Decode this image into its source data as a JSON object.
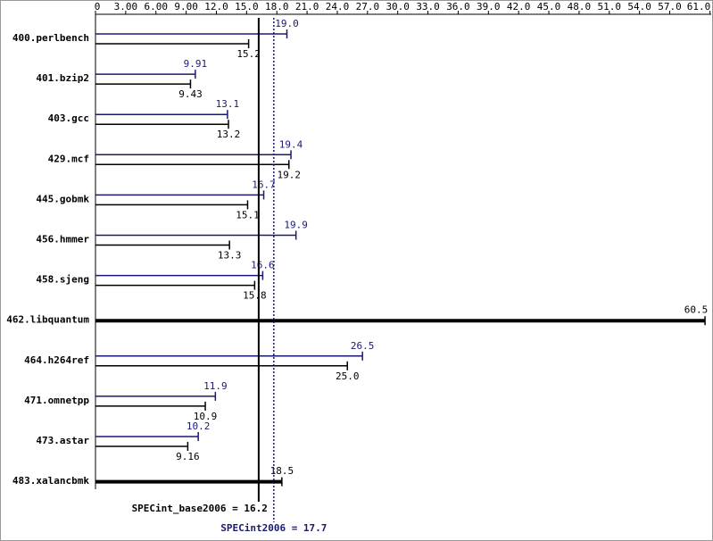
{
  "chart_data": {
    "type": "bar",
    "orientation": "horizontal",
    "categories": [
      "400.perlbench",
      "401.bzip2",
      "403.gcc",
      "429.mcf",
      "445.gobmk",
      "456.hmmer",
      "458.sjeng",
      "462.libquantum",
      "464.h264ref",
      "471.omnetpp",
      "473.astar",
      "483.xalancbmk"
    ],
    "series": [
      {
        "color": "#191970",
        "values": [
          19.0,
          9.91,
          13.1,
          19.4,
          16.7,
          19.9,
          16.6,
          null,
          26.5,
          11.9,
          10.2,
          null
        ],
        "value_labels": [
          "19.0",
          "9.91",
          "13.1",
          "19.4",
          "16.7",
          "19.9",
          "16.6",
          null,
          "26.5",
          "11.9",
          "10.2",
          null
        ]
      },
      {
        "color": "#000000",
        "values": [
          15.2,
          9.43,
          13.2,
          19.2,
          15.1,
          13.3,
          15.8,
          60.5,
          25.0,
          10.9,
          9.16,
          18.5
        ],
        "value_labels": [
          "15.2",
          "9.43",
          "13.2",
          "19.2",
          "15.1",
          "13.3",
          "15.8",
          "60.5",
          "25.0",
          "10.9",
          "9.16",
          "18.5"
        ]
      }
    ],
    "xlim": [
      0,
      61
    ],
    "xticks": [
      0,
      {
        "value": 3,
        "label": "3.00"
      },
      {
        "value": 6,
        "label": "6.00"
      },
      {
        "value": 9,
        "label": "9.00"
      },
      {
        "value": 12,
        "label": "12.0"
      },
      {
        "value": 15,
        "label": "15.0"
      },
      {
        "value": 18,
        "label": "18.0"
      },
      {
        "value": 21,
        "label": "21.0"
      },
      {
        "value": 24,
        "label": "24.0"
      },
      {
        "value": 27,
        "label": "27.0"
      },
      {
        "value": 30,
        "label": "30.0"
      },
      {
        "value": 33,
        "label": "33.0"
      },
      {
        "value": 36,
        "label": "36.0"
      },
      {
        "value": 39,
        "label": "39.0"
      },
      {
        "value": 42,
        "label": "42.0"
      },
      {
        "value": 45,
        "label": "45.0"
      },
      {
        "value": 48,
        "label": "48.0"
      },
      {
        "value": 51,
        "label": "51.0"
      },
      {
        "value": 54,
        "label": "54.0"
      },
      {
        "value": 57,
        "label": "57.0"
      },
      {
        "value": 61,
        "label": "61.0"
      }
    ],
    "reference_lines": [
      {
        "label": "SPECint_base2006 = 16.2",
        "value": 16.2,
        "color": "#000000",
        "style": "solid"
      },
      {
        "label": "SPECint2006 = 17.7",
        "value": 17.7,
        "color": "#191970",
        "style": "dotted"
      }
    ]
  }
}
